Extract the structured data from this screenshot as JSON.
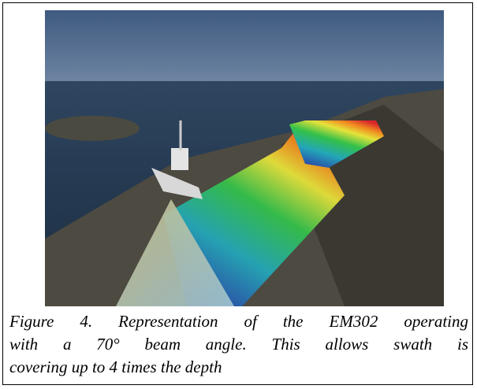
{
  "figure": {
    "caption": {
      "lines": [
        "Figure 4. Representation of the EM302 operating",
        "with a 70° beam angle. This allows swath is",
        "covering up to 4 times the depth"
      ]
    }
  }
}
